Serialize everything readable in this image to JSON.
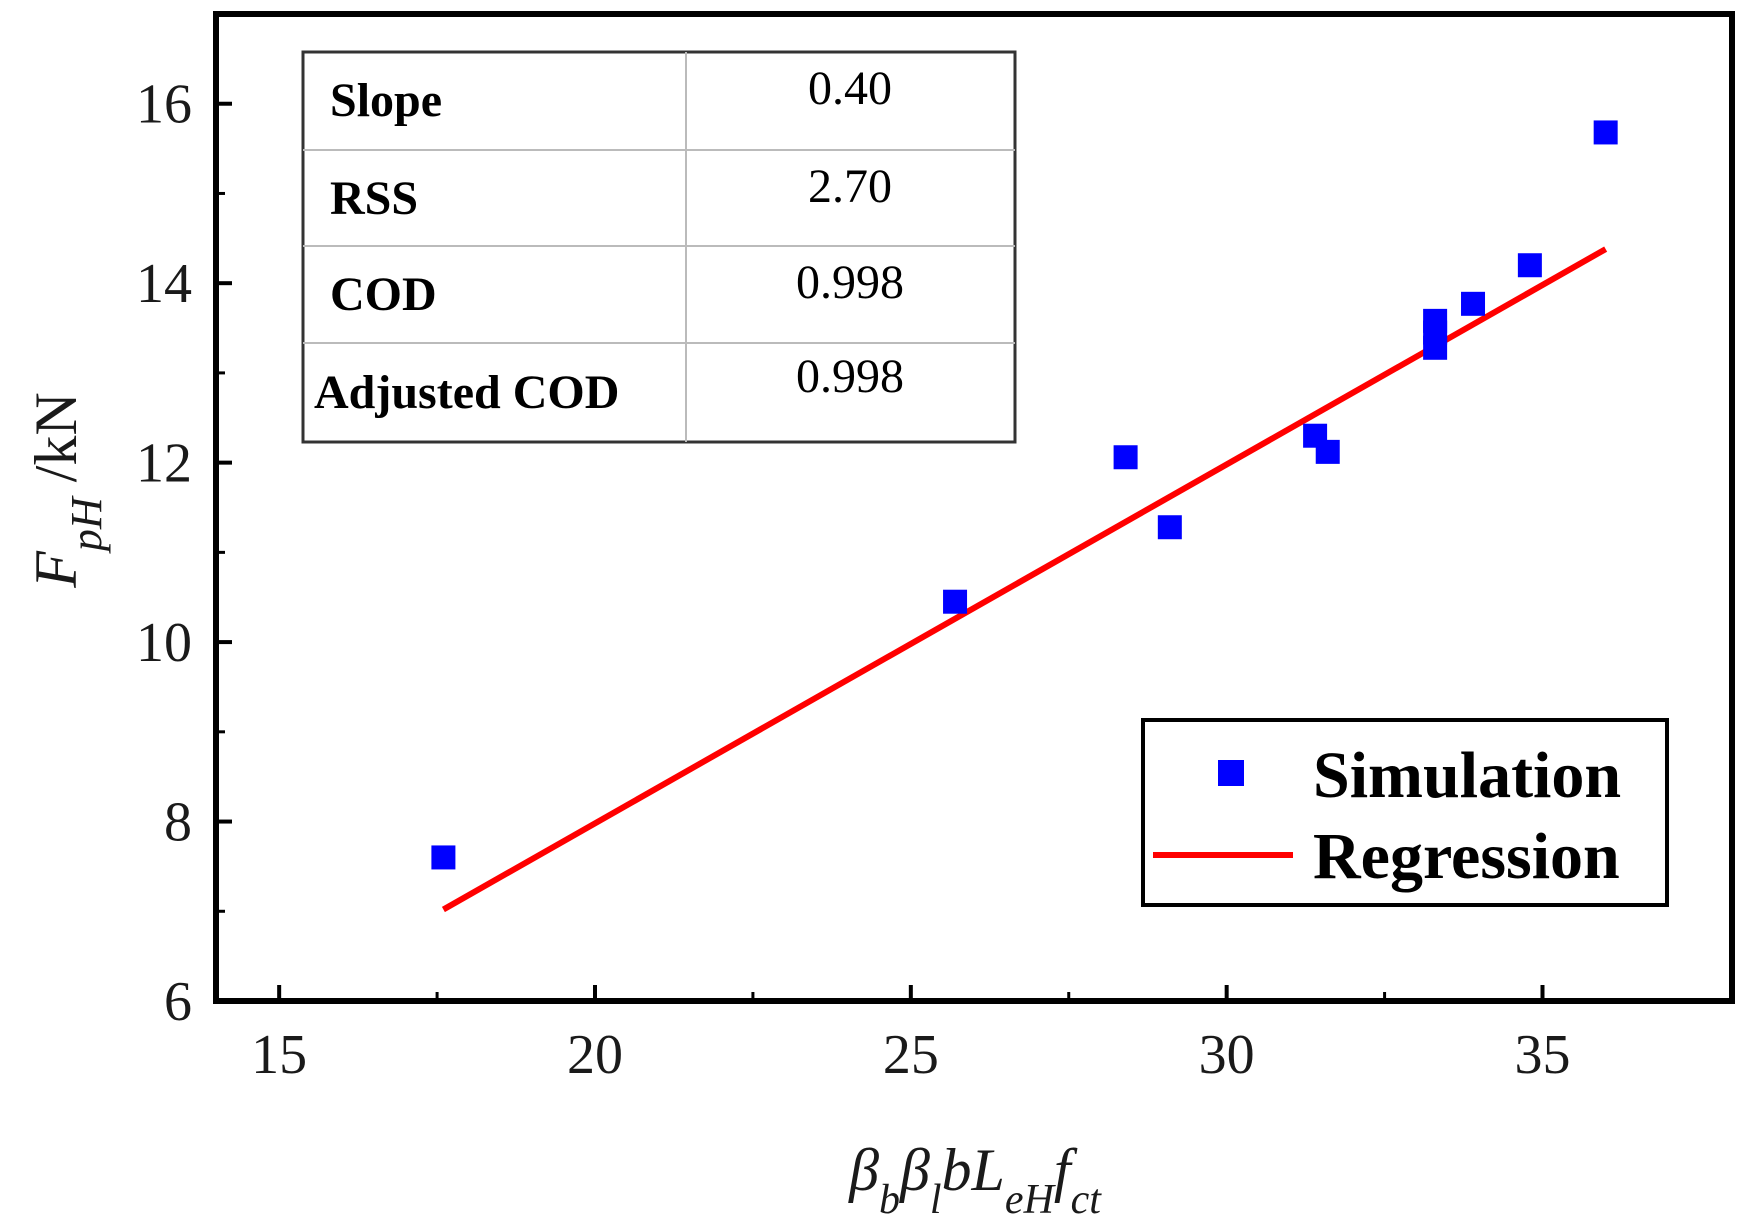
{
  "chart_data": {
    "type": "scatter",
    "title": "",
    "xlabel_parts": [
      {
        "text": "β",
        "sub": "b"
      },
      {
        "text": "β",
        "sub": "l"
      },
      {
        "text": "bL",
        "sub": "eH"
      },
      {
        "text": "f",
        "sub": "ct"
      }
    ],
    "ylabel": {
      "main": "F",
      "sub": "pH",
      "unit": " /kN"
    },
    "xlim": [
      14,
      38
    ],
    "ylim": [
      6,
      17
    ],
    "xticks": [
      15,
      20,
      25,
      30,
      35
    ],
    "yticks": [
      6,
      8,
      10,
      12,
      14,
      16
    ],
    "grid": false,
    "series": [
      {
        "name": "Simulation",
        "type": "scatter",
        "marker": "square",
        "color": "#0000ff",
        "x": [
          17.6,
          25.7,
          28.4,
          29.1,
          31.4,
          31.6,
          33.3,
          33.3,
          33.3,
          33.9,
          34.8,
          36.0
        ],
        "y": [
          7.6,
          10.45,
          12.06,
          11.28,
          12.3,
          12.12,
          13.58,
          13.45,
          13.28,
          13.77,
          14.2,
          15.68
        ]
      },
      {
        "name": "Regression",
        "type": "line",
        "color": "#ff0000",
        "x": [
          17.6,
          36.0
        ],
        "y": [
          7.02,
          14.38
        ]
      }
    ],
    "legend": {
      "position": "bottom-right",
      "entries": [
        {
          "label": "Simulation",
          "marker": "square",
          "color": "#0000ff"
        },
        {
          "label": "Regression",
          "marker": "line",
          "color": "#ff0000"
        }
      ]
    },
    "stats_table": {
      "position": "top-left",
      "rows": [
        {
          "key": "Slope",
          "value": "0.40"
        },
        {
          "key": "RSS",
          "value": "2.70"
        },
        {
          "key": "COD",
          "value": "0.998"
        },
        {
          "key": "Adjusted COD",
          "value": "0.998"
        }
      ]
    }
  }
}
